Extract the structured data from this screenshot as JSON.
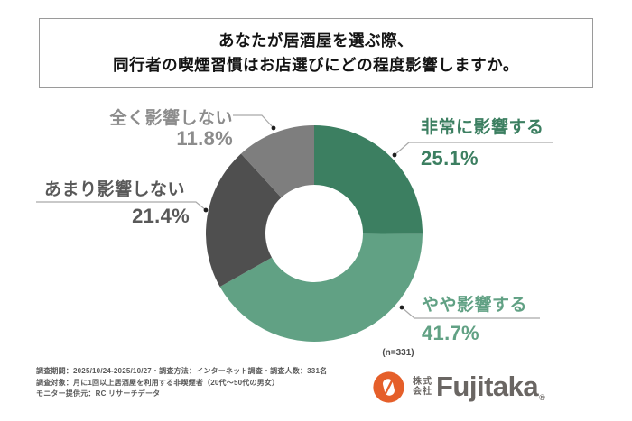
{
  "header": {
    "title_line1": "あなたが居酒屋を選ぶ際、",
    "title_line2": "同行者の喫煙習慣はお店選びにどの程度影響しますか。"
  },
  "chart_data": {
    "type": "pie",
    "subtype": "donut",
    "title": "あなたが居酒屋を選ぶ際、同行者の喫煙習慣はお店選びにどの程度影響しますか。",
    "n_label": "(n=331)",
    "start_angle_deg": 0,
    "direction": "clockwise",
    "inner_radius_ratio": 0.45,
    "segments": [
      {
        "label": "非常に影響する",
        "value": 25.1,
        "pct_label": "25.1%",
        "color": "#3C7F61",
        "label_color": "#3C7F61"
      },
      {
        "label": "やや影響する",
        "value": 41.7,
        "pct_label": "41.7%",
        "color": "#61A184",
        "label_color": "#61A184"
      },
      {
        "label": "あまり影響しない",
        "value": 21.4,
        "pct_label": "21.4%",
        "color": "#4F4F4F",
        "label_color": "#595959"
      },
      {
        "label": "全く影響しない",
        "value": 11.8,
        "pct_label": "11.8%",
        "color": "#7E7E7E",
        "label_color": "#8C8C8C"
      }
    ]
  },
  "footer": {
    "lines": [
      "調査期間：2025/10/24-2025/10/27・調査方法：インターネット調査・調査人数：331名",
      "調査対象：月に1回以上居酒屋を利用する非喫煙者（20代～50代の男女）",
      "モニター提供元：RC リサーチデータ"
    ]
  },
  "logo": {
    "company_top": "株式",
    "company_bottom": "会社",
    "brand": "Fujitaka",
    "registered": "®",
    "orange": "#E55F2A"
  },
  "colors": {
    "leader_line": "#a9a9a9",
    "leader_dot": "#1f1f1f",
    "title_border": "#9a9a9a"
  }
}
